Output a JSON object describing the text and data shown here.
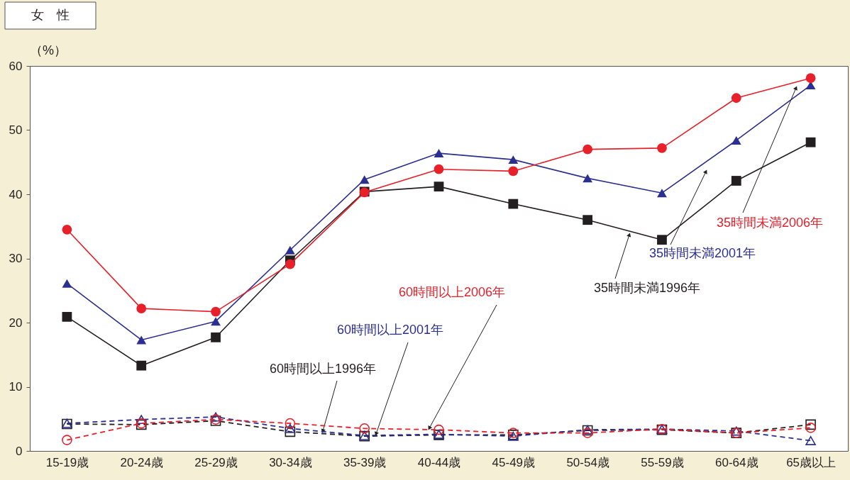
{
  "chart_data": {
    "type": "line",
    "title": "女　性",
    "ylabel": "（%）",
    "categories": [
      "15-19歳",
      "20-24歳",
      "25-29歳",
      "30-34歳",
      "35-39歳",
      "40-44歳",
      "45-49歳",
      "50-54歳",
      "55-59歳",
      "60-64歳",
      "65歳以上"
    ],
    "ylim": [
      0,
      60
    ],
    "yticks": [
      0,
      10,
      20,
      30,
      40,
      50,
      60
    ],
    "grid": false,
    "series": [
      {
        "name": "35時間未満1996年",
        "color": "#231f20",
        "marker": "square",
        "line_style": "solid",
        "values": [
          20.9,
          13.3,
          17.7,
          29.7,
          40.4,
          41.2,
          38.5,
          36.0,
          32.9,
          42.1,
          48.1
        ]
      },
      {
        "name": "35時間未満2001年",
        "color": "#2b2f8f",
        "marker": "triangle",
        "line_style": "solid",
        "values": [
          26.1,
          17.3,
          20.2,
          31.3,
          42.3,
          46.4,
          45.4,
          42.5,
          40.2,
          48.4,
          57.0
        ]
      },
      {
        "name": "35時間未満2006年",
        "color": "#e8202a",
        "marker": "circle",
        "line_style": "solid",
        "values": [
          34.5,
          22.2,
          21.7,
          29.1,
          40.3,
          43.9,
          43.6,
          47.0,
          47.2,
          55.0,
          58.1
        ]
      },
      {
        "name": "60時間以上1996年",
        "color": "#231f20",
        "marker": "square",
        "line_style": "dashed",
        "values": [
          4.2,
          4.1,
          4.7,
          3.0,
          2.3,
          2.5,
          2.5,
          3.2,
          3.3,
          2.8,
          4.1
        ]
      },
      {
        "name": "60時間以上2001年",
        "color": "#2b2f8f",
        "marker": "triangle",
        "line_style": "dashed",
        "values": [
          4.3,
          4.9,
          5.3,
          3.5,
          2.4,
          2.6,
          2.3,
          3.3,
          3.4,
          3.1,
          1.6
        ]
      },
      {
        "name": "60時間以上2006年",
        "color": "#e8202a",
        "marker": "circle",
        "line_style": "dashed",
        "values": [
          1.7,
          4.3,
          4.9,
          4.3,
          3.5,
          3.3,
          2.8,
          2.8,
          3.4,
          2.8,
          3.6
        ]
      }
    ]
  }
}
